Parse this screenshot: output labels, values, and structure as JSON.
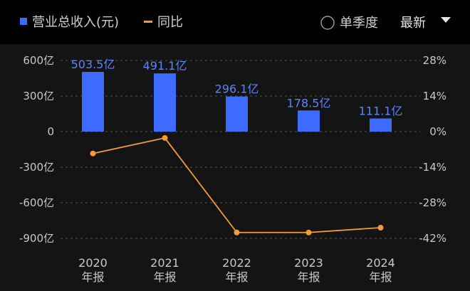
{
  "legend": {
    "bar_series": "营业总收入(元)",
    "line_series": "同比"
  },
  "controls": {
    "quarterly_label": "单季度",
    "sort_label": "最新"
  },
  "colors": {
    "background": "#000000",
    "panel": "#141414",
    "bar": "#3d6bff",
    "line": "#f59a3a",
    "grid": "#555555"
  },
  "chart_data": {
    "type": "bar",
    "categories": [
      "2020\n年报",
      "2021\n年报",
      "2022\n年报",
      "2023\n年报",
      "2024\n年报"
    ],
    "series": [
      {
        "name": "营业总收入(元)",
        "type": "bar",
        "axis": "left",
        "values": [
          503.5,
          491.1,
          296.1,
          178.5,
          111.1
        ],
        "labels": [
          "503.5亿",
          "491.1亿",
          "296.1亿",
          "178.5亿",
          "111.1亿"
        ]
      },
      {
        "name": "同比",
        "type": "line",
        "axis": "right",
        "values": [
          -8.6,
          -2.5,
          -39.7,
          -39.7,
          -37.8
        ]
      }
    ],
    "y_left": {
      "ticks": [
        600,
        300,
        0,
        -300,
        -600,
        -900
      ],
      "tick_labels": [
        "600亿",
        "300亿",
        "0",
        "-300亿",
        "-600亿",
        "-900亿"
      ],
      "range": [
        -900,
        600
      ]
    },
    "y_right": {
      "ticks": [
        28,
        14,
        0,
        -14,
        -28,
        -42
      ],
      "tick_labels": [
        "28%",
        "14%",
        "0%",
        "-14%",
        "-28%",
        "-42%"
      ],
      "range": [
        -42,
        28
      ]
    },
    "grid": true,
    "legend_position": "top-left"
  }
}
